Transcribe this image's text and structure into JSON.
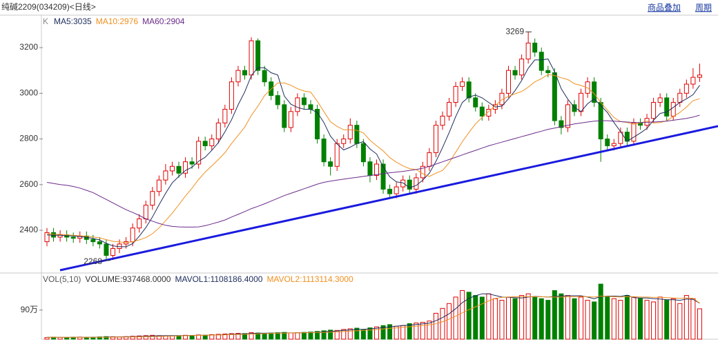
{
  "header": {
    "title": "纯碱2209(034209)<日线>",
    "links": [
      "商品叠加",
      "周期"
    ]
  },
  "chart_data": [
    {
      "type": "candlestick",
      "indicator": "K",
      "legend": [
        "MA5:3035",
        "MA10:2976",
        "MA60:2904"
      ],
      "up_color": "#e00000",
      "down_color": "#008000",
      "ma_colors": [
        "#1c2c5c",
        "#f09020",
        "#6a2a8a"
      ],
      "open": [
        2350,
        2390,
        2370,
        2380,
        2370,
        2365,
        2375,
        2360,
        2350,
        2340,
        2290,
        2320,
        2340,
        2350,
        2410,
        2450,
        2510,
        2570,
        2620,
        2660,
        2680,
        2650,
        2700,
        2690,
        2790,
        2770,
        2800,
        2870,
        2930,
        3050,
        3100,
        3080,
        3230,
        3100,
        3050,
        2990,
        2950,
        2850,
        2920,
        2980,
        2950,
        2930,
        2800,
        2700,
        2680,
        2780,
        2800,
        2860,
        2780,
        2700,
        2640,
        2690,
        2580,
        2560,
        2590,
        2620,
        2580,
        2630,
        2680,
        2740,
        2860,
        2900,
        2960,
        3030,
        3050,
        2980,
        2940,
        2900,
        2930,
        2950,
        3000,
        3100,
        3080,
        3150,
        3220,
        3180,
        3100,
        3090,
        2880,
        2850,
        2950,
        2920,
        3000,
        3050,
        2960,
        2800,
        2770,
        2780,
        2830,
        2790,
        2870,
        2860,
        2890,
        2960,
        2980,
        2900,
        2960,
        3000,
        3040,
        3070
      ],
      "high": [
        2410,
        2410,
        2400,
        2400,
        2390,
        2395,
        2395,
        2380,
        2370,
        2360,
        2340,
        2360,
        2370,
        2430,
        2470,
        2530,
        2590,
        2640,
        2690,
        2700,
        2700,
        2720,
        2720,
        2810,
        2810,
        2820,
        2890,
        2950,
        3070,
        3120,
        3120,
        3245,
        3240,
        3120,
        3070,
        3010,
        2970,
        2940,
        3000,
        3000,
        2970,
        2950,
        2820,
        2720,
        2800,
        2820,
        2890,
        2880,
        2800,
        2720,
        2710,
        2710,
        2600,
        2610,
        2640,
        2640,
        2650,
        2700,
        2760,
        2880,
        2920,
        2980,
        3050,
        3070,
        3070,
        3000,
        2960,
        2950,
        2970,
        3020,
        3120,
        3120,
        3170,
        3269,
        3240,
        3200,
        3120,
        3110,
        2900,
        2970,
        2970,
        3020,
        3070,
        3070,
        2980,
        2820,
        2800,
        2850,
        2850,
        2890,
        2890,
        2910,
        2980,
        3000,
        3000,
        2980,
        3020,
        3060,
        3110,
        3130
      ],
      "low": [
        2330,
        2350,
        2350,
        2350,
        2345,
        2345,
        2340,
        2330,
        2320,
        2268,
        2270,
        2300,
        2320,
        2330,
        2390,
        2430,
        2490,
        2550,
        2600,
        2640,
        2630,
        2630,
        2670,
        2670,
        2750,
        2750,
        2780,
        2850,
        2910,
        3030,
        3060,
        3060,
        3080,
        3030,
        2970,
        2930,
        2830,
        2830,
        2900,
        2930,
        2910,
        2780,
        2680,
        2640,
        2660,
        2760,
        2780,
        2760,
        2680,
        2610,
        2620,
        2560,
        2540,
        2540,
        2570,
        2560,
        2560,
        2610,
        2660,
        2720,
        2840,
        2880,
        2940,
        3010,
        2960,
        2920,
        2880,
        2880,
        2910,
        2930,
        2980,
        3060,
        3060,
        3130,
        3160,
        3080,
        3070,
        2860,
        2820,
        2830,
        2900,
        2900,
        2980,
        2940,
        2700,
        2750,
        2750,
        2760,
        2770,
        2770,
        2840,
        2840,
        2870,
        2940,
        2880,
        2880,
        2940,
        2980,
        3020,
        3050
      ],
      "close": [
        2390,
        2370,
        2380,
        2370,
        2365,
        2375,
        2360,
        2350,
        2340,
        2290,
        2320,
        2340,
        2350,
        2410,
        2450,
        2510,
        2570,
        2620,
        2660,
        2680,
        2650,
        2700,
        2690,
        2790,
        2770,
        2800,
        2870,
        2930,
        3050,
        3100,
        3080,
        3230,
        3100,
        3050,
        2990,
        2950,
        2850,
        2920,
        2980,
        2950,
        2930,
        2800,
        2700,
        2680,
        2780,
        2800,
        2860,
        2780,
        2700,
        2640,
        2690,
        2580,
        2560,
        2590,
        2620,
        2580,
        2630,
        2680,
        2740,
        2860,
        2900,
        2960,
        3030,
        3050,
        2980,
        2940,
        2900,
        2930,
        2950,
        3000,
        3100,
        3080,
        3150,
        3220,
        3180,
        3100,
        3090,
        2880,
        2850,
        2950,
        2920,
        3000,
        3050,
        2960,
        2800,
        2770,
        2780,
        2830,
        2790,
        2870,
        2860,
        2890,
        2960,
        2980,
        2900,
        2960,
        3000,
        3040,
        3070,
        3080
      ],
      "ma5": [
        2380,
        2378,
        2378,
        2376,
        2375,
        2372,
        2370,
        2364,
        2358,
        2343,
        2332,
        2328,
        2328,
        2342,
        2374,
        2412,
        2458,
        2512,
        2562,
        2608,
        2636,
        2662,
        2676,
        2702,
        2720,
        2750,
        2784,
        2832,
        2884,
        2950,
        3006,
        3078,
        3112,
        3112,
        3090,
        3080,
        2988,
        2952,
        2938,
        2930,
        2930,
        2916,
        2872,
        2812,
        2778,
        2752,
        2764,
        2780,
        2788,
        2756,
        2734,
        2678,
        2634,
        2612,
        2608,
        2586,
        2596,
        2620,
        2650,
        2702,
        2762,
        2828,
        2898,
        2960,
        2984,
        2992,
        2980,
        2960,
        2940,
        2944,
        2976,
        3012,
        3056,
        3110,
        3146,
        3146,
        3150,
        3094,
        3020,
        2974,
        2938,
        2920,
        2954,
        2976,
        2946,
        2916,
        2872,
        2832,
        2790,
        2808,
        2826,
        2846,
        2882,
        2912,
        2918,
        2938,
        2960,
        2976,
        2994,
        3035
      ],
      "ma10": [
        2385,
        2383,
        2382,
        2380,
        2378,
        2376,
        2374,
        2371,
        2367,
        2359,
        2352,
        2349,
        2346,
        2350,
        2358,
        2368,
        2385,
        2410,
        2442,
        2475,
        2512,
        2550,
        2584,
        2622,
        2655,
        2682,
        2710,
        2740,
        2780,
        2816,
        2852,
        2903,
        2944,
        2990,
        3018,
        3045,
        3045,
        3035,
        3020,
        3010,
        3005,
        2965,
        2920,
        2875,
        2855,
        2840,
        2840,
        2838,
        2826,
        2794,
        2770,
        2748,
        2718,
        2698,
        2682,
        2670,
        2666,
        2648,
        2636,
        2650,
        2662,
        2696,
        2742,
        2788,
        2828,
        2866,
        2894,
        2920,
        2946,
        2972,
        2986,
        2998,
        3008,
        3027,
        3050,
        3064,
        3082,
        3078,
        3068,
        3060,
        3042,
        3034,
        3024,
        2998,
        2960,
        2926,
        2894,
        2876,
        2872,
        2864,
        2870,
        2878,
        2870,
        2872,
        2880,
        2898,
        2916,
        2940,
        2968,
        2976
      ],
      "ma60": [
        2610,
        2605,
        2600,
        2597,
        2592,
        2585,
        2575,
        2565,
        2550,
        2535,
        2520,
        2505,
        2490,
        2478,
        2465,
        2450,
        2440,
        2430,
        2422,
        2417,
        2415,
        2414,
        2414,
        2415,
        2420,
        2428,
        2436,
        2445,
        2458,
        2470,
        2482,
        2495,
        2505,
        2516,
        2528,
        2540,
        2552,
        2562,
        2572,
        2582,
        2592,
        2602,
        2610,
        2615,
        2620,
        2624,
        2628,
        2632,
        2636,
        2640,
        2644,
        2648,
        2652,
        2655,
        2658,
        2662,
        2666,
        2672,
        2680,
        2690,
        2700,
        2710,
        2720,
        2730,
        2740,
        2750,
        2760,
        2770,
        2778,
        2786,
        2794,
        2802,
        2810,
        2818,
        2826,
        2834,
        2842,
        2848,
        2854,
        2860,
        2866,
        2870,
        2874,
        2878,
        2880,
        2880,
        2878,
        2876,
        2874,
        2872,
        2872,
        2873,
        2874,
        2876,
        2878,
        2882,
        2886,
        2890,
        2896,
        2904
      ],
      "ylim": [
        2216,
        3333
      ],
      "yticks": [
        2400,
        2600,
        2800,
        3000,
        3200
      ],
      "annotations": [
        "3269",
        "2268"
      ],
      "trendline": {
        "values": [
          2225,
          2856
        ],
        "color": "#1a1adf"
      }
    },
    {
      "type": "bar",
      "legend": [
        "VOL(5,10)",
        "VOLUME:937468.0000",
        "MAVOL1:1108186.4000",
        "MAVOL2:1113114.3000"
      ],
      "legend_colors": [
        "#555555",
        "#333333",
        "#1c2c5c",
        "#f09020"
      ],
      "values": [
        50000,
        60000,
        55000,
        50000,
        60000,
        65000,
        55000,
        60000,
        70000,
        80000,
        75000,
        70000,
        80000,
        90000,
        100000,
        110000,
        120000,
        110000,
        100000,
        105000,
        110000,
        120000,
        115000,
        130000,
        125000,
        140000,
        150000,
        160000,
        170000,
        180000,
        175000,
        200000,
        190000,
        180000,
        190000,
        200000,
        210000,
        190000,
        200000,
        210000,
        220000,
        240000,
        260000,
        280000,
        270000,
        300000,
        320000,
        340000,
        300000,
        350000,
        380000,
        420000,
        450000,
        400000,
        420000,
        480000,
        500000,
        520000,
        560000,
        800000,
        950000,
        1100000,
        1300000,
        1500000,
        1450000,
        1350000,
        1300000,
        1400000,
        1250000,
        1200000,
        1300000,
        1250000,
        1350000,
        1400000,
        1300000,
        1250000,
        1200000,
        1500000,
        1400000,
        1350000,
        1250000,
        1300000,
        1200000,
        1150000,
        1700000,
        1300000,
        1250000,
        1200000,
        1350000,
        1300000,
        1250000,
        1200000,
        1150000,
        1300000,
        1200000,
        1250000,
        1100000,
        1350000,
        1250000,
        937468
      ],
      "mavol1": [
        57000,
        57000,
        56000,
        56000,
        57000,
        58000,
        57000,
        58000,
        62000,
        66000,
        68000,
        71000,
        75000,
        79000,
        83000,
        90000,
        98000,
        106000,
        108000,
        109000,
        109000,
        111000,
        116000,
        119000,
        120000,
        128000,
        132000,
        141000,
        151000,
        160000,
        167000,
        177000,
        183000,
        185000,
        187000,
        189000,
        194000,
        194000,
        198000,
        202000,
        206000,
        214000,
        228000,
        242000,
        254000,
        270000,
        286000,
        302000,
        306000,
        316000,
        338000,
        358000,
        380000,
        400000,
        424000,
        434000,
        454000,
        474000,
        496000,
        572000,
        666000,
        786000,
        942000,
        1130000,
        1260000,
        1340000,
        1400000,
        1400000,
        1350000,
        1300000,
        1290000,
        1280000,
        1270000,
        1300000,
        1320000,
        1310000,
        1300000,
        1320000,
        1330000,
        1340000,
        1340000,
        1340000,
        1300000,
        1250000,
        1320000,
        1330000,
        1330000,
        1320000,
        1360000,
        1280000,
        1270000,
        1270000,
        1250000,
        1240000,
        1220000,
        1220000,
        1200000,
        1240000,
        1230000,
        1108186.4
      ],
      "mavol2": [
        58000,
        58000,
        58000,
        57000,
        57000,
        57000,
        57000,
        57000,
        58000,
        60000,
        62000,
        64000,
        66000,
        69000,
        73000,
        77000,
        81000,
        86000,
        90000,
        94000,
        100000,
        106000,
        112000,
        118000,
        122000,
        125000,
        130000,
        134000,
        140000,
        146000,
        152000,
        158000,
        165000,
        172000,
        178000,
        182000,
        187000,
        191000,
        195000,
        198000,
        202000,
        206000,
        211000,
        218000,
        225000,
        235000,
        247000,
        260000,
        270000,
        282000,
        298000,
        316000,
        335000,
        350000,
        366000,
        384000,
        402000,
        420000,
        440000,
        475000,
        540000,
        620000,
        708000,
        815000,
        910000,
        1000000,
        1090000,
        1180000,
        1260000,
        1290000,
        1300000,
        1310000,
        1310000,
        1310000,
        1310000,
        1310000,
        1300000,
        1300000,
        1300000,
        1310000,
        1310000,
        1320000,
        1310000,
        1300000,
        1330000,
        1320000,
        1310000,
        1300000,
        1310000,
        1310000,
        1300000,
        1300000,
        1290000,
        1290000,
        1280000,
        1270000,
        1260000,
        1270000,
        1260000,
        1113114.3
      ],
      "ylim": [
        0,
        2000000
      ],
      "yticks": [
        {
          "value": 900000,
          "label": "90万"
        }
      ]
    }
  ]
}
